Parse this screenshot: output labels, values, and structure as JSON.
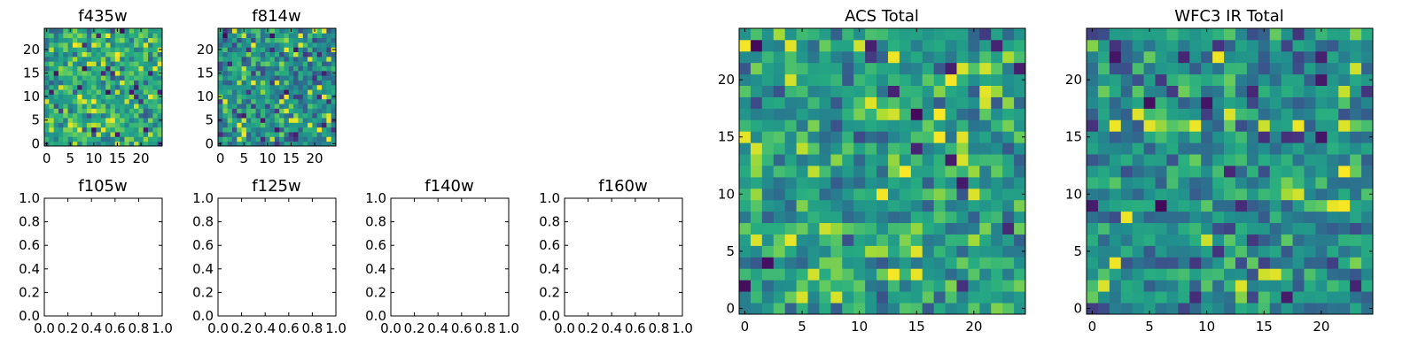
{
  "figure": {
    "background": "#ffffff"
  },
  "chart_data": [
    {
      "type": "heatmap",
      "title": "f435w",
      "xticks": [
        "0",
        "5",
        "10",
        "15",
        "20"
      ],
      "yticks": [
        "0",
        "5",
        "10",
        "15",
        "20"
      ],
      "xlim": [
        -0.5,
        24.5
      ],
      "ylim": [
        -0.5,
        24.5
      ],
      "grid_size": [
        25,
        25
      ],
      "colormap": "viridis",
      "seed": 11,
      "bias": 0.15
    },
    {
      "type": "heatmap",
      "title": "f814w",
      "xticks": [
        "0",
        "5",
        "10",
        "15",
        "20"
      ],
      "yticks": [
        "0",
        "5",
        "10",
        "15",
        "20"
      ],
      "xlim": [
        -0.5,
        24.5
      ],
      "ylim": [
        -0.5,
        24.5
      ],
      "grid_size": [
        25,
        25
      ],
      "colormap": "viridis",
      "seed": 23,
      "bias": 0.05
    },
    {
      "type": "empty",
      "title": "f105w",
      "xticks": [
        "0.0",
        "0.2",
        "0.4",
        "0.6",
        "0.8",
        "1.0"
      ],
      "yticks": [
        "0.0",
        "0.2",
        "0.4",
        "0.6",
        "0.8",
        "1.0"
      ],
      "xlim": [
        0,
        1
      ],
      "ylim": [
        0,
        1
      ]
    },
    {
      "type": "empty",
      "title": "f125w",
      "xticks": [
        "0.0",
        "0.2",
        "0.4",
        "0.6",
        "0.8",
        "1.0"
      ],
      "yticks": [
        "0.0",
        "0.2",
        "0.4",
        "0.6",
        "0.8",
        "1.0"
      ],
      "xlim": [
        0,
        1
      ],
      "ylim": [
        0,
        1
      ]
    },
    {
      "type": "empty",
      "title": "f140w",
      "xticks": [
        "0.0",
        "0.2",
        "0.4",
        "0.6",
        "0.8",
        "1.0"
      ],
      "yticks": [
        "0.0",
        "0.2",
        "0.4",
        "0.6",
        "0.8",
        "1.0"
      ],
      "xlim": [
        0,
        1
      ],
      "ylim": [
        0,
        1
      ]
    },
    {
      "type": "empty",
      "title": "f160w",
      "xticks": [
        "0.0",
        "0.2",
        "0.4",
        "0.6",
        "0.8",
        "1.0"
      ],
      "yticks": [
        "0.0",
        "0.2",
        "0.4",
        "0.6",
        "0.8",
        "1.0"
      ],
      "xlim": [
        0,
        1
      ],
      "ylim": [
        0,
        1
      ]
    },
    {
      "type": "heatmap",
      "title": "ACS Total",
      "xticks": [
        "0",
        "5",
        "10",
        "15",
        "20"
      ],
      "yticks": [
        "0",
        "5",
        "10",
        "15",
        "20"
      ],
      "xlim": [
        -0.5,
        24.5
      ],
      "ylim": [
        -0.5,
        24.5
      ],
      "grid_size": [
        25,
        25
      ],
      "colormap": "viridis",
      "seed": 37,
      "bias": 0.12
    },
    {
      "type": "heatmap",
      "title": "WFC3 IR Total",
      "xticks": [
        "0",
        "5",
        "10",
        "15",
        "20"
      ],
      "yticks": [
        "0",
        "5",
        "10",
        "15",
        "20"
      ],
      "xlim": [
        -0.5,
        24.5
      ],
      "ylim": [
        -0.5,
        24.5
      ],
      "grid_size": [
        25,
        25
      ],
      "colormap": "viridis",
      "seed": 53,
      "bias": 0.05
    }
  ]
}
